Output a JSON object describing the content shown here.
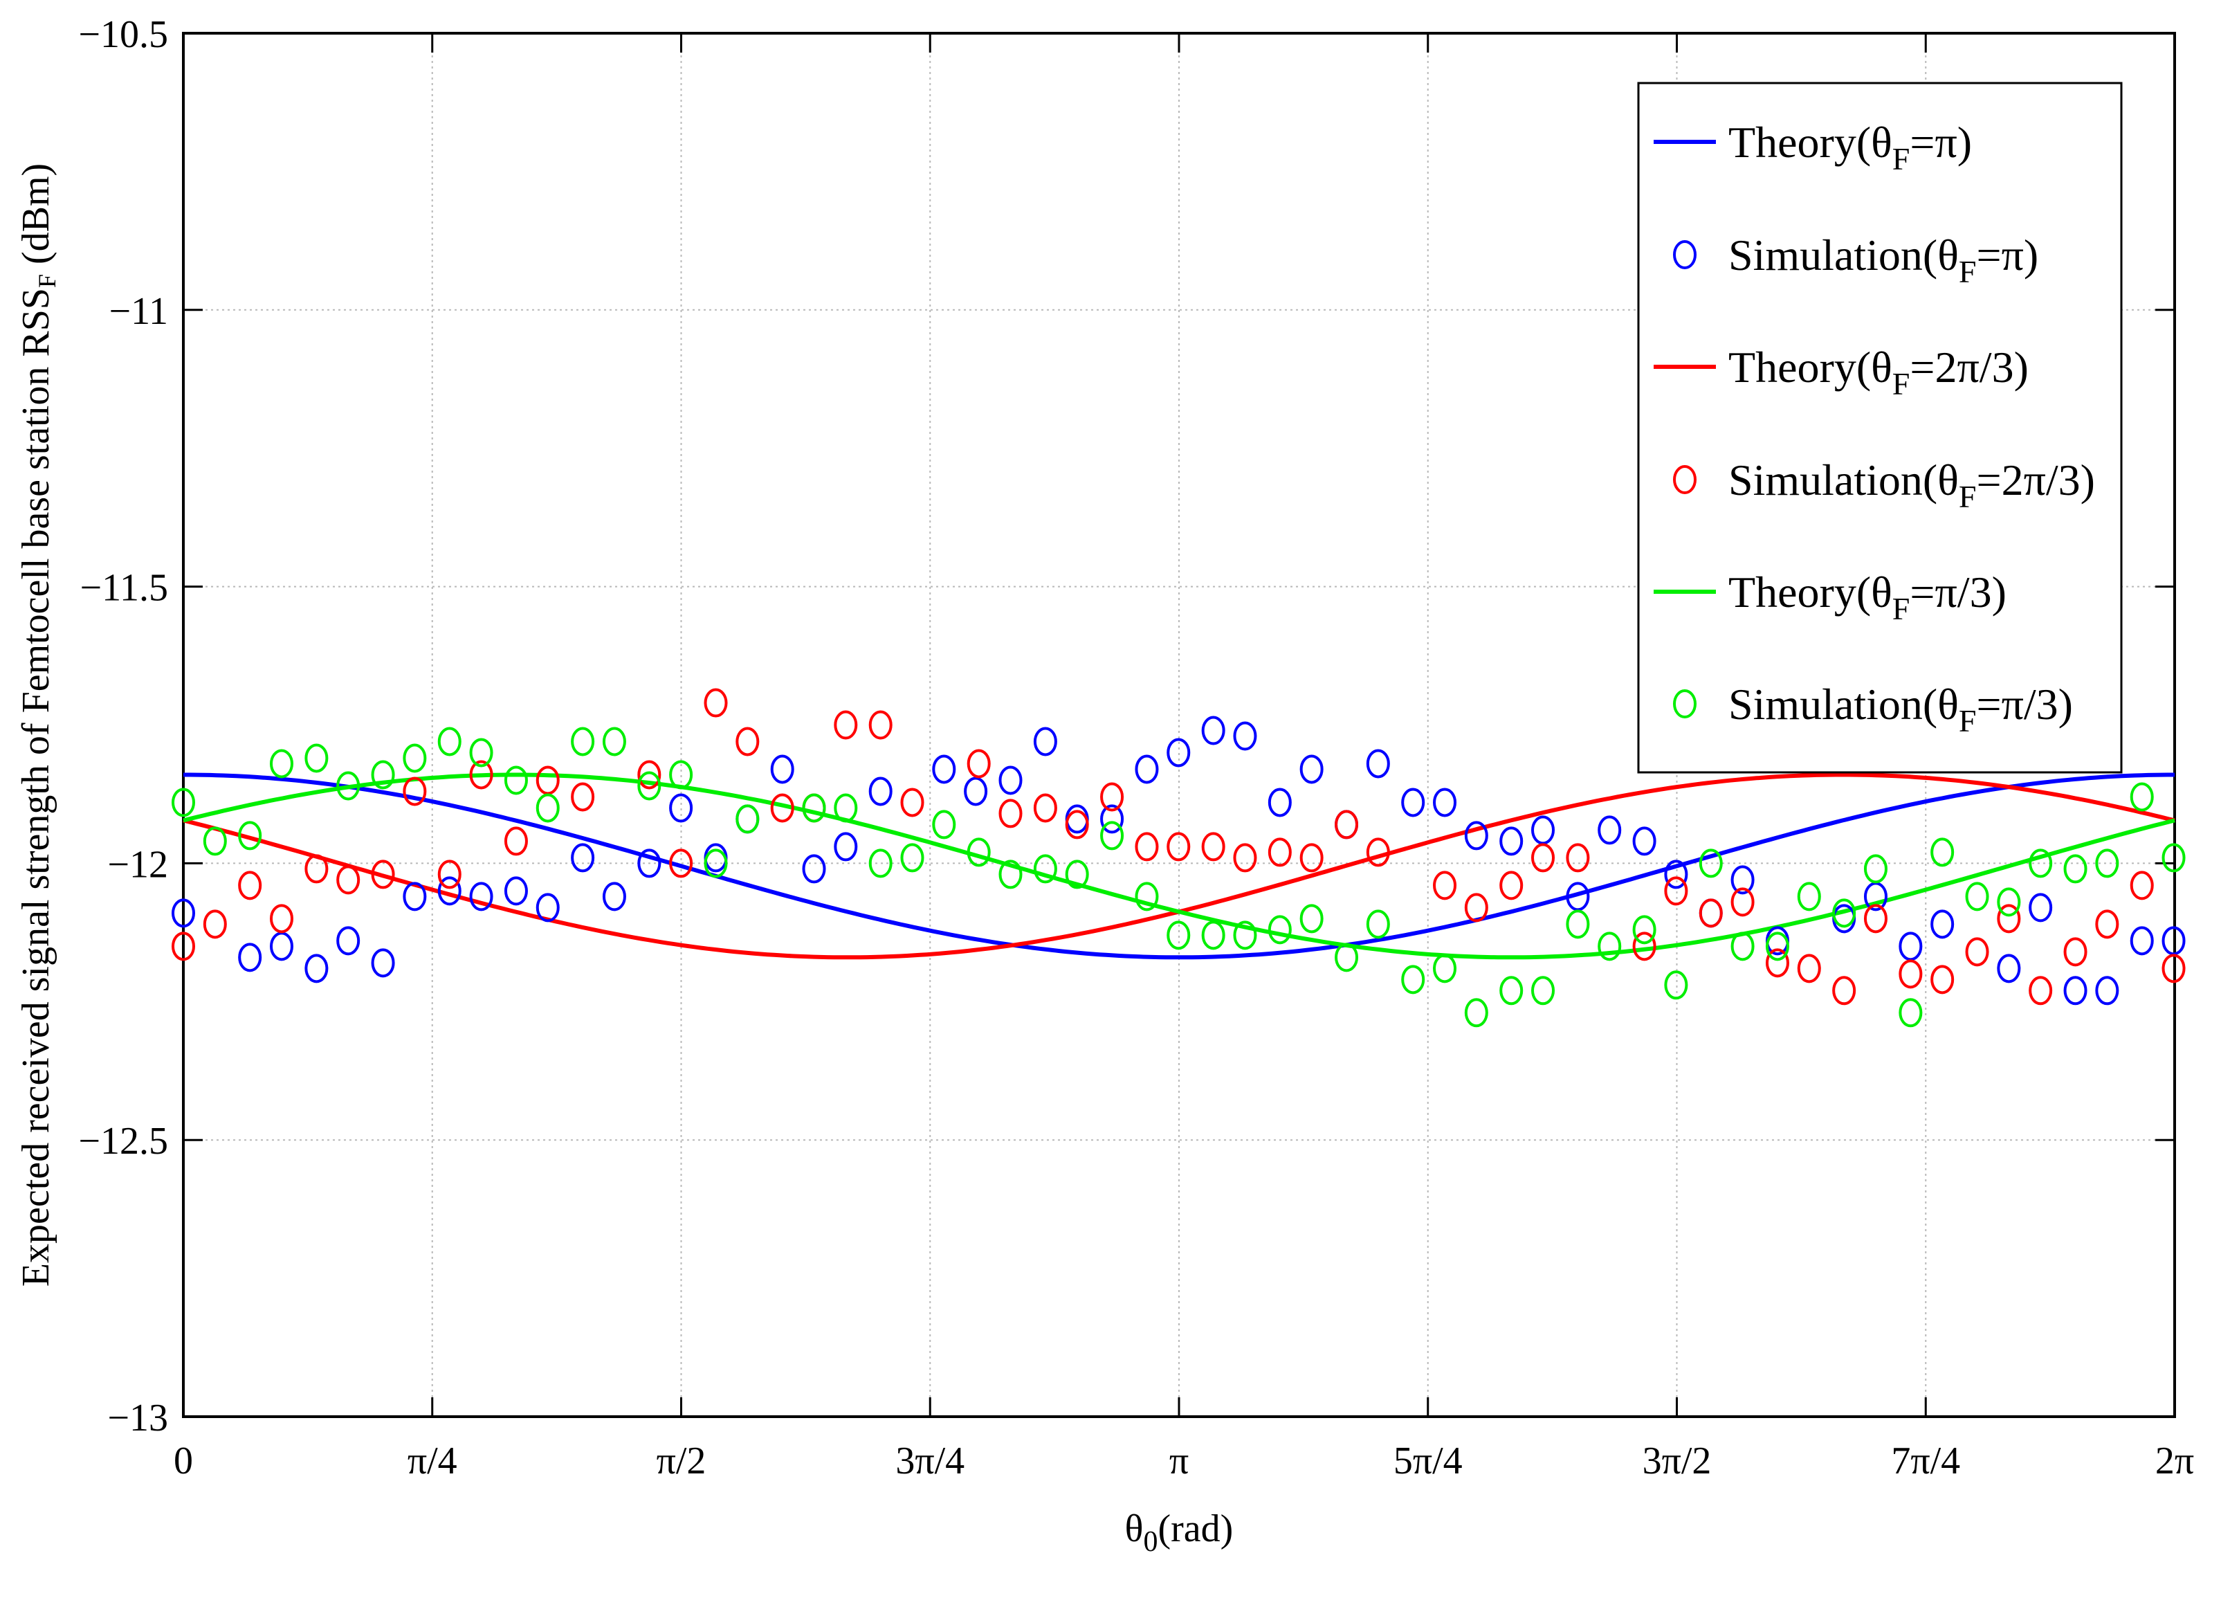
{
  "chart_data": {
    "type": "line",
    "title": "",
    "xlabel": {
      "main": "θ",
      "sub": "0",
      "rest": "(rad)"
    },
    "ylabel": {
      "main": "Expected received signal strength of Femtocell base station RSS",
      "sub": "F",
      "rest": " (dBm)"
    },
    "xlim": [
      0,
      6.2832
    ],
    "ylim": [
      -13,
      -10.5
    ],
    "grid": true,
    "legend_position": "top-right",
    "x_ticks": [
      {
        "value": 0,
        "label": "0"
      },
      {
        "value": 0.7854,
        "label": "π/4"
      },
      {
        "value": 1.5708,
        "label": "π/2"
      },
      {
        "value": 2.3562,
        "label": "3π/4"
      },
      {
        "value": 3.1416,
        "label": "π"
      },
      {
        "value": 3.927,
        "label": "5π/4"
      },
      {
        "value": 4.7124,
        "label": "3π/2"
      },
      {
        "value": 5.4978,
        "label": "7π/4"
      },
      {
        "value": 6.2832,
        "label": "2π"
      }
    ],
    "y_ticks": [
      {
        "value": -10.5,
        "label": "−10.5"
      },
      {
        "value": -11,
        "label": "−11"
      },
      {
        "value": -11.5,
        "label": "−11.5"
      },
      {
        "value": -12,
        "label": "−12"
      },
      {
        "value": -12.5,
        "label": "−12.5"
      },
      {
        "value": -13,
        "label": "−13"
      }
    ],
    "theory_model": {
      "mean": -12.005,
      "amplitude": 0.165,
      "note": "y = mean - amplitude*cos(x - phase)"
    },
    "series": [
      {
        "key": "blue",
        "color": "#0000ff",
        "phase": 3.1416,
        "theory_label": {
          "main": "Theory(θ",
          "sub": "F",
          "rest": "=π)"
        },
        "sim_label": {
          "main": "Simulation(θ",
          "sub": "F",
          "rest": "=π)"
        },
        "points": [
          [
            0.0,
            -12.09
          ],
          [
            0.21,
            -12.17
          ],
          [
            0.31,
            -12.15
          ],
          [
            0.42,
            -12.19
          ],
          [
            0.52,
            -12.14
          ],
          [
            0.63,
            -12.18
          ],
          [
            0.73,
            -12.06
          ],
          [
            0.84,
            -12.05
          ],
          [
            0.94,
            -12.06
          ],
          [
            1.05,
            -12.05
          ],
          [
            1.15,
            -12.08
          ],
          [
            1.26,
            -11.99
          ],
          [
            1.36,
            -12.06
          ],
          [
            1.47,
            -12.0
          ],
          [
            1.57,
            -11.9
          ],
          [
            1.68,
            -11.99
          ],
          [
            1.78,
            -11.92
          ],
          [
            1.89,
            -11.83
          ],
          [
            1.99,
            -12.01
          ],
          [
            2.09,
            -11.97
          ],
          [
            2.2,
            -11.87
          ],
          [
            2.4,
            -11.83
          ],
          [
            2.5,
            -11.87
          ],
          [
            2.61,
            -11.85
          ],
          [
            2.72,
            -11.78
          ],
          [
            2.82,
            -11.92
          ],
          [
            2.93,
            -11.92
          ],
          [
            3.04,
            -11.83
          ],
          [
            3.14,
            -11.8
          ],
          [
            3.25,
            -11.76
          ],
          [
            3.35,
            -11.77
          ],
          [
            3.46,
            -11.89
          ],
          [
            3.56,
            -11.83
          ],
          [
            3.67,
            -11.93
          ],
          [
            3.77,
            -11.82
          ],
          [
            3.88,
            -11.89
          ],
          [
            3.98,
            -11.89
          ],
          [
            4.08,
            -11.95
          ],
          [
            4.19,
            -11.96
          ],
          [
            4.29,
            -11.94
          ],
          [
            4.4,
            -12.06
          ],
          [
            4.5,
            -11.94
          ],
          [
            4.61,
            -11.96
          ],
          [
            4.71,
            -12.02
          ],
          [
            4.82,
            -12.09
          ],
          [
            4.92,
            -12.03
          ],
          [
            5.03,
            -12.14
          ],
          [
            5.24,
            -12.1
          ],
          [
            5.34,
            -12.06
          ],
          [
            5.45,
            -12.15
          ],
          [
            5.55,
            -12.11
          ],
          [
            5.76,
            -12.19
          ],
          [
            5.86,
            -12.08
          ],
          [
            5.97,
            -12.23
          ],
          [
            6.07,
            -12.23
          ],
          [
            6.18,
            -12.14
          ],
          [
            6.28,
            -12.14
          ]
        ]
      },
      {
        "key": "red",
        "color": "#ff0000",
        "phase": 2.0944,
        "theory_label": {
          "main": "Theory(θ",
          "sub": "F",
          "rest": "=2π/3)"
        },
        "sim_label": {
          "main": "Simulation(θ",
          "sub": "F",
          "rest": "=2π/3)"
        },
        "points": [
          [
            0.0,
            -12.15
          ],
          [
            0.1,
            -12.11
          ],
          [
            0.21,
            -12.04
          ],
          [
            0.31,
            -12.1
          ],
          [
            0.42,
            -12.01
          ],
          [
            0.52,
            -12.03
          ],
          [
            0.63,
            -12.02
          ],
          [
            0.73,
            -11.87
          ],
          [
            0.84,
            -12.02
          ],
          [
            0.94,
            -11.84
          ],
          [
            1.05,
            -11.96
          ],
          [
            1.15,
            -11.85
          ],
          [
            1.26,
            -11.88
          ],
          [
            1.47,
            -11.84
          ],
          [
            1.57,
            -12.0
          ],
          [
            1.68,
            -11.71
          ],
          [
            1.78,
            -11.78
          ],
          [
            1.89,
            -11.9
          ],
          [
            1.99,
            -11.9
          ],
          [
            2.09,
            -11.75
          ],
          [
            2.2,
            -11.75
          ],
          [
            2.3,
            -11.89
          ],
          [
            2.51,
            -11.82
          ],
          [
            2.61,
            -11.91
          ],
          [
            2.72,
            -11.9
          ],
          [
            2.82,
            -11.93
          ],
          [
            2.93,
            -11.88
          ],
          [
            3.04,
            -11.97
          ],
          [
            3.14,
            -11.97
          ],
          [
            3.25,
            -11.97
          ],
          [
            3.35,
            -11.99
          ],
          [
            3.46,
            -11.98
          ],
          [
            3.56,
            -11.99
          ],
          [
            3.67,
            -11.93
          ],
          [
            3.77,
            -11.98
          ],
          [
            3.98,
            -12.04
          ],
          [
            4.08,
            -12.08
          ],
          [
            4.19,
            -12.04
          ],
          [
            4.29,
            -11.99
          ],
          [
            4.4,
            -11.99
          ],
          [
            4.61,
            -12.15
          ],
          [
            4.71,
            -12.05
          ],
          [
            4.82,
            -12.09
          ],
          [
            4.92,
            -12.07
          ],
          [
            5.03,
            -12.18
          ],
          [
            5.13,
            -12.19
          ],
          [
            5.24,
            -12.23
          ],
          [
            5.34,
            -12.1
          ],
          [
            5.45,
            -12.2
          ],
          [
            5.55,
            -12.21
          ],
          [
            5.66,
            -12.16
          ],
          [
            5.76,
            -12.1
          ],
          [
            5.86,
            -12.23
          ],
          [
            5.97,
            -12.16
          ],
          [
            6.07,
            -12.11
          ],
          [
            6.18,
            -12.04
          ],
          [
            6.28,
            -12.19
          ]
        ]
      },
      {
        "key": "green",
        "color": "#00ee00",
        "phase": 4.1888,
        "theory_label": {
          "main": "Theory(θ",
          "sub": "F",
          "rest": "=π/3)"
        },
        "sim_label": {
          "main": "Simulation(θ",
          "sub": "F",
          "rest": "=π/3)"
        },
        "points": [
          [
            0.0,
            -11.89
          ],
          [
            0.1,
            -11.96
          ],
          [
            0.21,
            -11.95
          ],
          [
            0.31,
            -11.82
          ],
          [
            0.42,
            -11.81
          ],
          [
            0.52,
            -11.86
          ],
          [
            0.63,
            -11.84
          ],
          [
            0.73,
            -11.81
          ],
          [
            0.84,
            -11.78
          ],
          [
            0.94,
            -11.8
          ],
          [
            1.05,
            -11.85
          ],
          [
            1.15,
            -11.9
          ],
          [
            1.26,
            -11.78
          ],
          [
            1.36,
            -11.78
          ],
          [
            1.47,
            -11.86
          ],
          [
            1.57,
            -11.84
          ],
          [
            1.68,
            -12.0
          ],
          [
            1.78,
            -11.92
          ],
          [
            1.99,
            -11.9
          ],
          [
            2.09,
            -11.9
          ],
          [
            2.2,
            -12.0
          ],
          [
            2.3,
            -11.99
          ],
          [
            2.4,
            -11.93
          ],
          [
            2.51,
            -11.98
          ],
          [
            2.61,
            -12.02
          ],
          [
            2.72,
            -12.01
          ],
          [
            2.82,
            -12.02
          ],
          [
            2.93,
            -11.95
          ],
          [
            3.04,
            -12.06
          ],
          [
            3.14,
            -12.13
          ],
          [
            3.25,
            -12.13
          ],
          [
            3.35,
            -12.13
          ],
          [
            3.46,
            -12.12
          ],
          [
            3.56,
            -12.1
          ],
          [
            3.67,
            -12.17
          ],
          [
            3.77,
            -12.11
          ],
          [
            3.88,
            -12.21
          ],
          [
            3.98,
            -12.19
          ],
          [
            4.08,
            -12.27
          ],
          [
            4.19,
            -12.23
          ],
          [
            4.29,
            -12.23
          ],
          [
            4.4,
            -12.11
          ],
          [
            4.5,
            -12.15
          ],
          [
            4.61,
            -12.12
          ],
          [
            4.71,
            -12.22
          ],
          [
            4.82,
            -12.0
          ],
          [
            4.92,
            -12.15
          ],
          [
            5.03,
            -12.15
          ],
          [
            5.13,
            -12.06
          ],
          [
            5.24,
            -12.09
          ],
          [
            5.34,
            -12.01
          ],
          [
            5.45,
            -12.27
          ],
          [
            5.55,
            -11.98
          ],
          [
            5.66,
            -12.06
          ],
          [
            5.76,
            -12.07
          ],
          [
            5.86,
            -12.0
          ],
          [
            5.97,
            -12.01
          ],
          [
            6.07,
            -12.0
          ],
          [
            6.18,
            -11.88
          ],
          [
            6.28,
            -11.99
          ]
        ]
      }
    ]
  }
}
